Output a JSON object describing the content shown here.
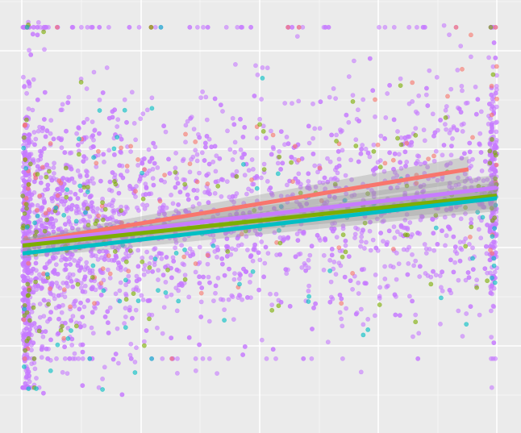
{
  "chart_data": {
    "type": "scatter",
    "title": "",
    "xlabel": "",
    "ylabel": "",
    "xlim": [
      0,
      1
    ],
    "ylim": [
      -0.6,
      0.85
    ],
    "grid": true,
    "legend": "none",
    "colors": {
      "panel": "#EBEBEB",
      "grid": "#FFFFFF",
      "series_red": "#F8766D",
      "series_green": "#7CAE00",
      "series_teal": "#00BFC4",
      "series_purple": "#C77CFF",
      "ribbon": "#999999"
    },
    "series": [
      {
        "color": "#F8766D",
        "weight": 0.06,
        "point_count": 120,
        "trend": {
          "x": [
            0,
            0.94
          ],
          "y": [
            0.0,
            0.28
          ]
        }
      },
      {
        "color": "#7CAE00",
        "weight": 0.08,
        "point_count": 150,
        "trend": {
          "x": [
            0,
            1
          ],
          "y": [
            -0.01,
            0.18
          ]
        }
      },
      {
        "color": "#00BFC4",
        "weight": 0.05,
        "point_count": 90,
        "trend": {
          "x": [
            0,
            1
          ],
          "y": [
            -0.04,
            0.17
          ]
        }
      },
      {
        "color": "#C77CFF",
        "weight": 0.81,
        "point_count": 3300,
        "trend": {
          "x": [
            0,
            1
          ],
          "y": [
            0.0,
            0.21
          ]
        }
      }
    ],
    "point_opacity": 0.6,
    "point_radius": 2.6
  }
}
